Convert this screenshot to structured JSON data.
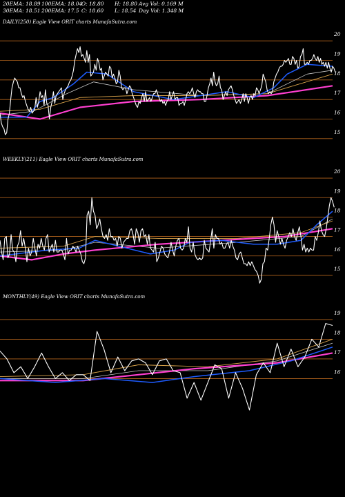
{
  "header": {
    "ema20": "20EMA: 18.89",
    "ema100": "100EMA: 18.04",
    "open": "O: 18.80",
    "high": "H: 18.80",
    "avg_vol": "Avg Vol: 0.169 M",
    "ema30": "30EMA: 18.51",
    "ema200": "200EMA: 17.5",
    "close": "C: 18.60",
    "low": "L: 18.54",
    "day_vol": "Day Vol: 1.348 M"
  },
  "colors": {
    "background": "#000000",
    "price": "#ffffff",
    "ema_short": "#1e5cff",
    "ema_long": "#ff3fd0",
    "ma_mid": "#d8a24a",
    "ma_other": "#c8c8c8",
    "gridline": "#b5651d"
  },
  "chart_data": [
    {
      "type": "line",
      "label": "DAILY(250) Eagle  View  ORIT charts MunafaSutra.com",
      "ticks": [
        "20",
        "19",
        "18",
        "17",
        "16",
        "15"
      ],
      "ylim": [
        14.5,
        20.5
      ],
      "n": 250,
      "price": [
        16.3,
        15.8,
        15.6,
        15.5,
        15.2,
        15.3,
        16.0,
        16.3,
        17.0,
        17.6,
        17.9,
        18.1,
        18.0,
        17.9,
        17.6,
        17.6,
        17.3,
        17.1,
        17.2,
        16.9,
        16.7,
        16.5,
        16.4,
        16.6,
        16.3,
        16.4,
        16.5,
        17.1,
        16.6,
        16.9,
        17.4,
        17.1,
        17.2,
        16.7,
        17.5,
        16.8,
        16.7,
        16.0,
        16.6,
        16.9,
        17.4,
        16.8,
        17.2,
        17.3,
        17.4,
        17.5,
        17.6,
        17.0,
        17.3,
        17.5,
        17.6,
        17.7,
        17.9,
        18.0,
        18.2,
        18.5,
        19.0,
        19.3,
        19.6,
        19.4,
        19.7,
        19.2,
        19.3,
        19.1,
        18.9,
        19.5,
        18.9,
        19.3,
        18.2,
        18.3,
        18.4,
        18.8,
        18.5,
        19.1,
        18.9,
        18.5,
        18.6,
        18.0,
        18.2,
        18.4,
        18.3,
        18.2,
        18.7,
        18.6,
        18.1,
        18.3,
        18.1,
        17.8,
        17.9,
        18.5,
        18.2,
        17.6,
        17.5,
        17.6,
        17.6,
        17.3,
        17.5,
        17.7,
        17.6,
        17.3,
        17.1,
        16.9,
        16.7,
        16.6,
        16.9,
        16.8,
        17.1,
        17.3,
        16.9,
        17.4,
        16.9,
        17.0,
        17.1,
        16.9,
        17.1,
        17.3,
        17.3,
        17.5,
        17.3,
        17.1,
        16.9,
        17.0,
        16.8,
        16.9,
        16.7,
        16.9,
        17.0,
        17.4,
        17.0,
        17.2,
        17.4,
        17.0,
        17.1,
        17.1,
        16.7,
        16.8,
        16.8,
        16.9,
        16.7,
        17.0,
        17.3,
        17.4,
        17.3,
        17.4,
        17.6,
        17.3,
        17.1,
        17.4,
        17.5,
        17.4,
        17.4,
        17.3,
        17.3,
        16.9,
        16.9,
        17.2,
        17.6,
        17.8,
        18.1,
        17.7,
        18.4,
        17.9,
        17.7,
        17.8,
        18.2,
        17.6,
        17.5,
        17.0,
        17.2,
        17.4,
        17.2,
        17.5,
        17.6,
        17.7,
        17.5,
        17.2,
        17.0,
        16.8,
        16.9,
        17.0,
        16.8,
        17.0,
        17.3,
        16.9,
        17.3,
        17.1,
        16.8,
        17.1,
        17.2,
        17.0,
        17.3,
        17.2,
        17.6,
        17.5,
        17.3,
        17.5,
        17.7,
        18.3,
        18.1,
        17.9,
        17.5,
        17.3,
        17.4,
        17.3,
        17.4,
        17.9,
        18.1,
        18.3,
        18.4,
        18.6,
        18.7,
        18.7,
        18.8,
        19.0,
        18.9,
        19.0,
        19.1,
        18.8,
        18.8,
        19.2,
        19.1,
        18.8,
        19.0,
        18.6,
        18.7,
        19.2,
        19.3,
        19.6,
        18.8,
        18.8,
        18.9,
        18.8,
        19.0,
        19.0,
        19.1,
        19.3,
        19.1,
        19.0,
        19.2,
        18.9,
        19.1,
        18.8,
        18.9,
        18.7,
        18.9,
        18.6,
        18.9,
        18.6,
        18.4,
        18.7,
        18.6,
        18.4
      ],
      "ema_short": [
        [
          0,
          16.1
        ],
        [
          20,
          16.1
        ],
        [
          30,
          16.9
        ],
        [
          40,
          17.1
        ],
        [
          55,
          17.8
        ],
        [
          65,
          18.4
        ],
        [
          80,
          18.3
        ],
        [
          100,
          17.4
        ],
        [
          130,
          17.0
        ],
        [
          150,
          17.2
        ],
        [
          170,
          17.4
        ],
        [
          190,
          17.1
        ],
        [
          205,
          17.6
        ],
        [
          215,
          18.3
        ],
        [
          230,
          18.8
        ],
        [
          249,
          18.7
        ]
      ],
      "ema_long": [
        [
          0,
          16.3
        ],
        [
          30,
          16.0
        ],
        [
          60,
          16.6
        ],
        [
          100,
          16.9
        ],
        [
          150,
          17.0
        ],
        [
          200,
          17.2
        ],
        [
          220,
          17.4
        ],
        [
          249,
          17.7
        ]
      ],
      "ma_mid": [
        [
          0,
          16.4
        ],
        [
          30,
          16.5
        ],
        [
          60,
          17.1
        ],
        [
          100,
          17.2
        ],
        [
          150,
          17.2
        ],
        [
          200,
          17.3
        ],
        [
          249,
          18.3
        ]
      ],
      "ma_other": [
        [
          0,
          16.2
        ],
        [
          25,
          16.4
        ],
        [
          50,
          17.3
        ],
        [
          70,
          17.9
        ],
        [
          100,
          17.5
        ],
        [
          150,
          17.2
        ],
        [
          200,
          17.3
        ],
        [
          230,
          18.3
        ],
        [
          249,
          18.5
        ]
      ]
    },
    {
      "type": "line",
      "label": "WEEKLY(211) Eagle  View  ORIT charts MunafaSutra.com",
      "ticks": [
        "20",
        "19",
        "18",
        "17",
        "16",
        "15"
      ],
      "ylim": [
        14.5,
        20.5
      ],
      "n": 211,
      "price": [
        16.8,
        16.2,
        15.8,
        16.9,
        17.0,
        15.9,
        16.1,
        17.1,
        16.3,
        16.2,
        15.7,
        16.5,
        16.7,
        17.3,
        16.5,
        16.9,
        16.4,
        15.7,
        16.4,
        16.0,
        16.2,
        16.9,
        16.4,
        16.0,
        16.6,
        16.4,
        16.9,
        16.5,
        16.3,
        16.9,
        17.1,
        16.2,
        16.4,
        16.6,
        16.2,
        16.8,
        16.2,
        16.2,
        16.3,
        16.3,
        16.1,
        15.8,
        16.9,
        16.1,
        16.3,
        16.3,
        16.5,
        16.4,
        16.2,
        16.5,
        16.3,
        16.1,
        15.7,
        15.6,
        15.9,
        18.1,
        18.3,
        17.6,
        19.0,
        18.3,
        18.1,
        17.4,
        17.6,
        17.9,
        17.4,
        17.0,
        16.9,
        17.1,
        16.8,
        17.4,
        17.0,
        17.0,
        16.8,
        16.9,
        16.5,
        17.0,
        16.9,
        16.4,
        16.7,
        16.8,
        16.9,
        16.9,
        17.3,
        17.4,
        17.1,
        16.6,
        17.4,
        17.2,
        16.7,
        17.3,
        17.4,
        17.0,
        17.1,
        16.6,
        17.1,
        16.4,
        16.3,
        16.2,
        16.7,
        15.7,
        15.9,
        16.2,
        16.5,
        16.4,
        16.1,
        16.0,
        15.9,
        16.2,
        16.7,
        16.3,
        16.0,
        16.5,
        16.8,
        16.9,
        16.4,
        16.3,
        16.4,
        16.9,
        16.7,
        17.5,
        16.4,
        16.2,
        16.7,
        16.1,
        15.9,
        15.8,
        15.9,
        15.8,
        15.9,
        16.8,
        16.4,
        16.3,
        16.2,
        16.8,
        17.4,
        16.4,
        17.1,
        16.9,
        16.9,
        16.6,
        16.7,
        16.4,
        16.4,
        16.6,
        16.7,
        16.4,
        16.8,
        16.5,
        16.3,
        15.9,
        15.8,
        16.1,
        16.2,
        15.9,
        15.6,
        15.6,
        15.5,
        15.7,
        15.5,
        15.7,
        15.5,
        15.3,
        15.2,
        15.0,
        14.6,
        14.8,
        15.6,
        15.7,
        16.4,
        16.3,
        16.9,
        17.6,
        18.0,
        17.6,
        16.7,
        17.3,
        17.0,
        16.6,
        16.9,
        16.6,
        16.4,
        16.8,
        17.0,
        17.2,
        17.0,
        17.4,
        17.0,
        16.8,
        17.2,
        17.5,
        17.0,
        16.3,
        16.6,
        16.2,
        16.4,
        16.2,
        16.4,
        16.3,
        16.3,
        17.0,
        16.8,
        17.2,
        17.8,
        17.3,
        17.1,
        17.0,
        17.4,
        18.0,
        18.6,
        19.0,
        18.8,
        18.5
      ],
      "ema_short": [
        [
          0,
          16.0
        ],
        [
          30,
          16.3
        ],
        [
          50,
          16.4
        ],
        [
          60,
          16.8
        ],
        [
          80,
          16.4
        ],
        [
          95,
          16.1
        ],
        [
          110,
          16.3
        ],
        [
          120,
          16.7
        ],
        [
          140,
          16.8
        ],
        [
          160,
          16.6
        ],
        [
          175,
          16.6
        ],
        [
          190,
          16.8
        ],
        [
          200,
          17.6
        ],
        [
          210,
          18.3
        ]
      ],
      "ema_long": [
        [
          0,
          16.0
        ],
        [
          20,
          15.8
        ],
        [
          40,
          16.1
        ],
        [
          60,
          16.3
        ],
        [
          100,
          16.6
        ],
        [
          140,
          16.8
        ],
        [
          180,
          17.0
        ],
        [
          210,
          17.4
        ]
      ],
      "ma_mid": [
        [
          0,
          16.4
        ],
        [
          40,
          16.5
        ],
        [
          60,
          17.0
        ],
        [
          100,
          16.9
        ],
        [
          150,
          16.9
        ],
        [
          190,
          17.2
        ],
        [
          210,
          17.8
        ]
      ],
      "ma_other": [
        [
          0,
          16.2
        ],
        [
          40,
          16.3
        ],
        [
          60,
          16.7
        ],
        [
          100,
          16.4
        ],
        [
          150,
          16.7
        ],
        [
          190,
          17.0
        ],
        [
          210,
          17.9
        ]
      ]
    },
    {
      "type": "line",
      "label": "MONTHLY(49) Eagle  View  ORIT charts MunafaSutra.com",
      "ticks": [
        "19",
        "18",
        "17",
        "16"
      ],
      "ylim": [
        13.7,
        19.7
      ],
      "n": 49,
      "price": [
        17.4,
        17.0,
        16.3,
        16.6,
        16.0,
        16.6,
        17.3,
        16.6,
        16.0,
        16.3,
        15.9,
        16.2,
        16.2,
        15.9,
        18.4,
        17.5,
        16.3,
        17.1,
        16.4,
        16.9,
        17.0,
        16.8,
        16.2,
        16.9,
        17.0,
        16.4,
        16.3,
        15.0,
        15.8,
        14.9,
        15.8,
        16.7,
        16.5,
        15.0,
        16.3,
        15.5,
        14.4,
        16.2,
        16.8,
        16.3,
        17.8,
        16.6,
        17.5,
        16.6,
        17.1,
        18.0,
        17.6,
        18.8,
        18.7
      ],
      "ema_short": [
        [
          0,
          16.0
        ],
        [
          8,
          15.8
        ],
        [
          15,
          16.0
        ],
        [
          22,
          15.8
        ],
        [
          28,
          16.1
        ],
        [
          36,
          16.4
        ],
        [
          42,
          16.9
        ],
        [
          48,
          17.6
        ]
      ],
      "ema_long": [
        [
          0,
          15.9
        ],
        [
          12,
          15.9
        ],
        [
          20,
          16.2
        ],
        [
          28,
          16.5
        ],
        [
          40,
          16.8
        ],
        [
          48,
          17.3
        ]
      ],
      "ma_mid": [
        [
          0,
          16.1
        ],
        [
          12,
          16.2
        ],
        [
          20,
          16.7
        ],
        [
          30,
          16.6
        ],
        [
          40,
          17.0
        ],
        [
          48,
          18.0
        ]
      ],
      "ma_other": [
        [
          0,
          16.0
        ],
        [
          12,
          16.0
        ],
        [
          20,
          16.4
        ],
        [
          30,
          16.4
        ],
        [
          40,
          16.9
        ],
        [
          48,
          17.8
        ]
      ]
    }
  ]
}
